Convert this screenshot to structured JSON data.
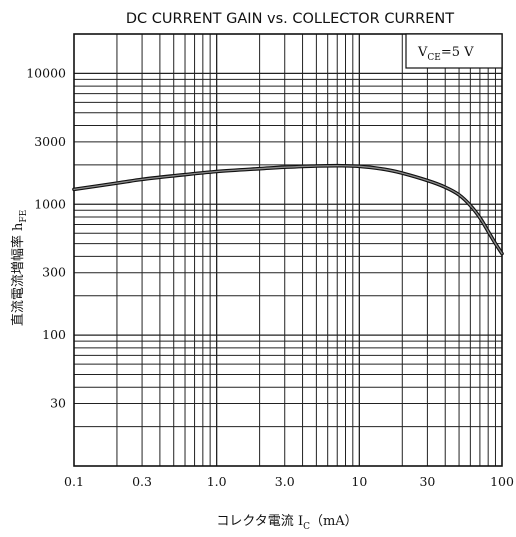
{
  "chart_data": {
    "type": "line",
    "title": "DC CURRENT GAIN vs. COLLECTOR CURRENT",
    "xlabel": {
      "text": "コレクタ電流",
      "symbol": "I",
      "subscript": "C",
      "unit": "（mA）"
    },
    "ylabel": {
      "text": "直流電流増幅率",
      "symbol": "h",
      "subscript": "FE"
    },
    "annotation": {
      "symbol": "V",
      "subscript": "CE",
      "value": "=5 V"
    },
    "xscale": "log",
    "yscale": "log",
    "xlim": [
      0.1,
      100
    ],
    "ylim": [
      10,
      20000
    ],
    "x_ticks": [
      {
        "value": 0.1,
        "label": "0.1"
      },
      {
        "value": 0.3,
        "label": "0.3"
      },
      {
        "value": 1,
        "label": "1.0"
      },
      {
        "value": 3,
        "label": "3.0"
      },
      {
        "value": 10,
        "label": "10"
      },
      {
        "value": 30,
        "label": "30"
      },
      {
        "value": 100,
        "label": "100"
      }
    ],
    "y_ticks": [
      {
        "value": 30,
        "label": "30"
      },
      {
        "value": 100,
        "label": "100"
      },
      {
        "value": 300,
        "label": "300"
      },
      {
        "value": 1000,
        "label": "1000"
      },
      {
        "value": 3000,
        "label": "3000"
      },
      {
        "value": 10000,
        "label": "10000"
      }
    ],
    "grid": true,
    "series": [
      {
        "x": [
          0.1,
          0.2,
          0.3,
          0.5,
          1,
          2,
          3,
          5,
          7,
          10,
          15,
          20,
          30,
          40,
          50,
          60,
          70,
          80,
          90,
          100
        ],
        "y": [
          1300,
          1450,
          1550,
          1650,
          1780,
          1870,
          1920,
          1960,
          1970,
          1950,
          1850,
          1730,
          1520,
          1350,
          1180,
          980,
          790,
          620,
          500,
          420
        ]
      }
    ]
  }
}
